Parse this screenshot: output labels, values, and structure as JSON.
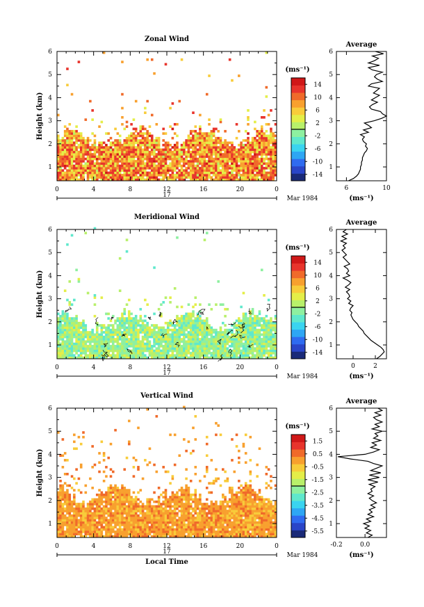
{
  "figure": {
    "x_axis_title": "Local Time",
    "date_label": "Mar 1984",
    "day_label": "17",
    "x_ticks": [
      "0",
      "4",
      "8",
      "12",
      "16",
      "20",
      "0"
    ],
    "height_axis_title": "Height (km)",
    "colorbar_unit": "(ms⁻¹)",
    "average_unit": "(ms⁻¹)"
  },
  "chart_data": [
    {
      "type": "heatmap",
      "title": "Zonal Wind",
      "xlabel": "",
      "ylabel": "Height (km)",
      "xlim": [
        0,
        24
      ],
      "ylim": [
        0.4,
        6
      ],
      "yticks": [
        1,
        2,
        3,
        4,
        5,
        6
      ],
      "colorbar": {
        "unit": "(ms⁻¹)",
        "range": [
          -16,
          16
        ],
        "ticks": [
          14,
          10,
          6,
          2,
          -2,
          -6,
          -10,
          -14
        ],
        "ticklabels": [
          "14",
          "10",
          "6",
          "2",
          "-2",
          "-6",
          "-10",
          "-14"
        ]
      },
      "fill": {
        "base_top_km": 2.2,
        "dominant_range_ms": [
          2,
          14
        ],
        "hot_range_ms": [
          8,
          14
        ],
        "scattered_top_km": 3.7
      },
      "profile": {
        "title": "Average",
        "xlabel": "(ms⁻¹)",
        "xlim": [
          5,
          10
        ],
        "xticks": [
          6,
          10
        ],
        "ylim": [
          0.4,
          6
        ],
        "height_km": [
          0.4,
          0.5,
          0.6,
          0.7,
          0.8,
          0.9,
          1.0,
          1.1,
          1.2,
          1.3,
          1.4,
          1.5,
          1.6,
          1.7,
          1.8,
          1.9,
          2.0,
          2.1,
          2.2,
          2.3,
          2.4,
          2.5,
          2.6,
          2.7,
          2.8,
          2.9,
          3.0,
          3.1,
          3.2,
          3.3,
          3.4,
          3.5,
          3.6,
          3.7,
          3.8,
          3.9,
          4.0,
          4.1,
          4.2,
          4.3,
          4.4,
          4.5,
          4.6,
          4.7,
          4.8,
          4.9,
          5.0,
          5.1,
          5.2,
          5.3,
          5.4,
          5.5,
          5.6,
          5.7,
          5.8,
          5.9,
          6.0
        ],
        "value_ms": [
          6.2,
          6.7,
          7.0,
          7.2,
          7.3,
          7.4,
          7.4,
          7.5,
          7.5,
          7.6,
          7.6,
          7.7,
          7.8,
          8.0,
          8.1,
          7.9,
          8.0,
          7.7,
          7.6,
          7.8,
          7.4,
          8.2,
          7.7,
          8.5,
          8.2,
          7.8,
          8.8,
          9.5,
          10.0,
          9.6,
          9.4,
          8.5,
          8.3,
          8.6,
          9.1,
          8.5,
          8.9,
          9.3,
          8.7,
          9.0,
          9.3,
          8.2,
          8.5,
          9.6,
          9.1,
          8.8,
          9.0,
          9.6,
          8.6,
          8.2,
          9.3,
          8.2,
          8.8,
          9.2,
          8.6,
          9.7,
          8.9
        ]
      }
    },
    {
      "type": "heatmap",
      "title": "Meridional Wind",
      "xlabel": "",
      "ylabel": "Height (km)",
      "xlim": [
        0,
        24
      ],
      "ylim": [
        0.4,
        6
      ],
      "yticks": [
        1,
        2,
        3,
        4,
        5,
        6
      ],
      "colorbar": {
        "unit": "(ms⁻¹)",
        "range": [
          -16,
          16
        ],
        "ticks": [
          14,
          10,
          6,
          2,
          -2,
          -6,
          -10,
          -14
        ],
        "ticklabels": [
          "14",
          "10",
          "6",
          "2",
          "-2",
          "-6",
          "-10",
          "-14"
        ]
      },
      "fill": {
        "base_top_km": 2.0,
        "dominant_range_ms": [
          -4,
          4
        ],
        "contour_level_ms": 0,
        "scattered_top_km": 3.5
      },
      "profile": {
        "title": "Average",
        "xlabel": "(ms⁻¹)",
        "xlim": [
          -1.5,
          3
        ],
        "xticks": [
          0,
          2
        ],
        "ylim": [
          0.4,
          6
        ],
        "height_km": [
          0.4,
          0.5,
          0.6,
          0.7,
          0.8,
          0.9,
          1.0,
          1.1,
          1.2,
          1.3,
          1.4,
          1.5,
          1.6,
          1.7,
          1.8,
          1.9,
          2.0,
          2.1,
          2.2,
          2.3,
          2.4,
          2.5,
          2.6,
          2.7,
          2.8,
          2.9,
          3.0,
          3.1,
          3.2,
          3.3,
          3.4,
          3.5,
          3.6,
          3.7,
          3.8,
          3.9,
          4.0,
          4.1,
          4.2,
          4.3,
          4.4,
          4.5,
          4.6,
          4.7,
          4.8,
          4.9,
          5.0,
          5.1,
          5.2,
          5.3,
          5.4,
          5.5,
          5.6,
          5.7,
          5.8,
          5.9,
          6.0
        ],
        "value_ms": [
          2.1,
          2.4,
          2.6,
          2.8,
          2.7,
          2.5,
          2.2,
          1.9,
          1.6,
          1.4,
          1.2,
          1.0,
          0.9,
          0.7,
          0.5,
          0.4,
          0.2,
          0.0,
          -0.1,
          -0.2,
          -0.1,
          -0.3,
          -0.2,
          0.0,
          -0.4,
          -0.2,
          -0.5,
          -0.3,
          -0.4,
          -0.6,
          -0.3,
          -0.7,
          -0.4,
          -0.2,
          -0.5,
          -0.9,
          -0.3,
          -0.6,
          -0.4,
          -0.5,
          -0.8,
          -0.3,
          -0.5,
          -0.7,
          -0.9,
          -0.6,
          -0.8,
          -1.0,
          -0.7,
          -0.9,
          -0.6,
          -1.1,
          -0.6,
          -1.0,
          -0.5,
          -0.9,
          -0.6
        ]
      }
    },
    {
      "type": "heatmap",
      "title": "Vertical Wind",
      "xlabel": "Local Time",
      "ylabel": "Height (km)",
      "xlim": [
        0,
        24
      ],
      "ylim": [
        0.4,
        6
      ],
      "yticks": [
        1,
        2,
        3,
        4,
        5,
        6
      ],
      "colorbar": {
        "unit": "(ms⁻¹)",
        "range": [
          -6,
          2
        ],
        "ticks": [
          1.5,
          0.5,
          -0.5,
          -1.5,
          -2.5,
          -3.5,
          -4.5,
          -5.5
        ],
        "ticklabels": [
          "1.5",
          "0.5",
          "-0.5",
          "-1.5",
          "-2.5",
          "-3.5",
          "-4.5",
          "-5.5"
        ]
      },
      "fill": {
        "base_top_km": 2.2,
        "dominant_range_ms": [
          -0.5,
          0.5
        ],
        "scattered_top_km": 5.8
      },
      "profile": {
        "title": "Average",
        "xlabel": "(ms⁻¹)",
        "xlim": [
          -0.2,
          0.15
        ],
        "xticks": [
          -0.2,
          0.0
        ],
        "xticklabels": [
          "-0.2",
          "0.0"
        ],
        "ylim": [
          0.4,
          6
        ],
        "height_km": [
          0.4,
          0.5,
          0.6,
          0.7,
          0.8,
          0.9,
          1.0,
          1.1,
          1.2,
          1.3,
          1.4,
          1.5,
          1.6,
          1.7,
          1.8,
          1.9,
          2.0,
          2.1,
          2.2,
          2.3,
          2.4,
          2.5,
          2.6,
          2.7,
          2.8,
          2.9,
          3.0,
          3.1,
          3.2,
          3.3,
          3.4,
          3.5,
          3.6,
          3.7,
          3.8,
          3.9,
          4.0,
          4.1,
          4.2,
          4.3,
          4.4,
          4.5,
          4.6,
          4.7,
          4.8,
          4.9,
          5.0,
          5.1,
          5.2,
          5.3,
          5.4,
          5.5,
          5.6,
          5.7,
          5.8,
          5.9,
          6.0
        ],
        "value_ms": [
          0.02,
          0.05,
          0.01,
          0.04,
          0.0,
          0.03,
          -0.01,
          0.04,
          0.01,
          0.06,
          0.02,
          0.05,
          0.03,
          0.07,
          0.04,
          0.08,
          0.05,
          0.03,
          0.06,
          0.02,
          0.05,
          0.04,
          0.07,
          0.03,
          0.09,
          0.02,
          0.1,
          0.03,
          0.11,
          0.04,
          0.08,
          0.12,
          0.06,
          0.02,
          -0.1,
          -0.19,
          0.0,
          0.06,
          0.1,
          0.04,
          0.08,
          0.05,
          0.11,
          0.06,
          0.09,
          0.07,
          0.12,
          0.05,
          0.1,
          0.07,
          0.12,
          0.08,
          0.06,
          0.11,
          0.07,
          0.12,
          0.09
        ]
      }
    }
  ]
}
